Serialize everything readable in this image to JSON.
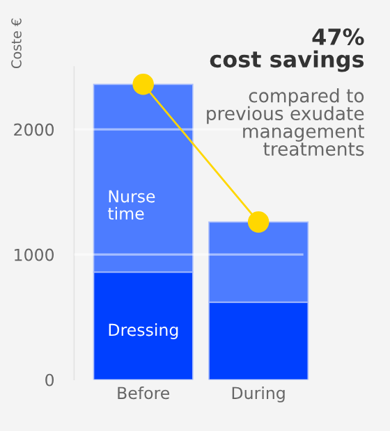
{
  "chart_data": {
    "type": "bar",
    "stacked": true,
    "ylabel": "Coste €",
    "categories": [
      "Before",
      "During"
    ],
    "series": [
      {
        "name": "Dressing",
        "color": "#0040ff",
        "values": [
          860,
          620
        ]
      },
      {
        "name": "Nurse time",
        "color": "#4d7cff",
        "values": [
          1500,
          640
        ]
      },
      {
        "type": "line",
        "color": "#ffd700",
        "values": [
          2360,
          1260
        ],
        "marker": "circle"
      }
    ],
    "ylim": [
      0,
      2500
    ],
    "yticks": [
      0,
      1000,
      2000
    ],
    "grid": "y",
    "legend": false,
    "annotations": [
      "47%\ncost savings",
      "compared to\nprevious exudate\nmanagement\ntreatments"
    ]
  }
}
